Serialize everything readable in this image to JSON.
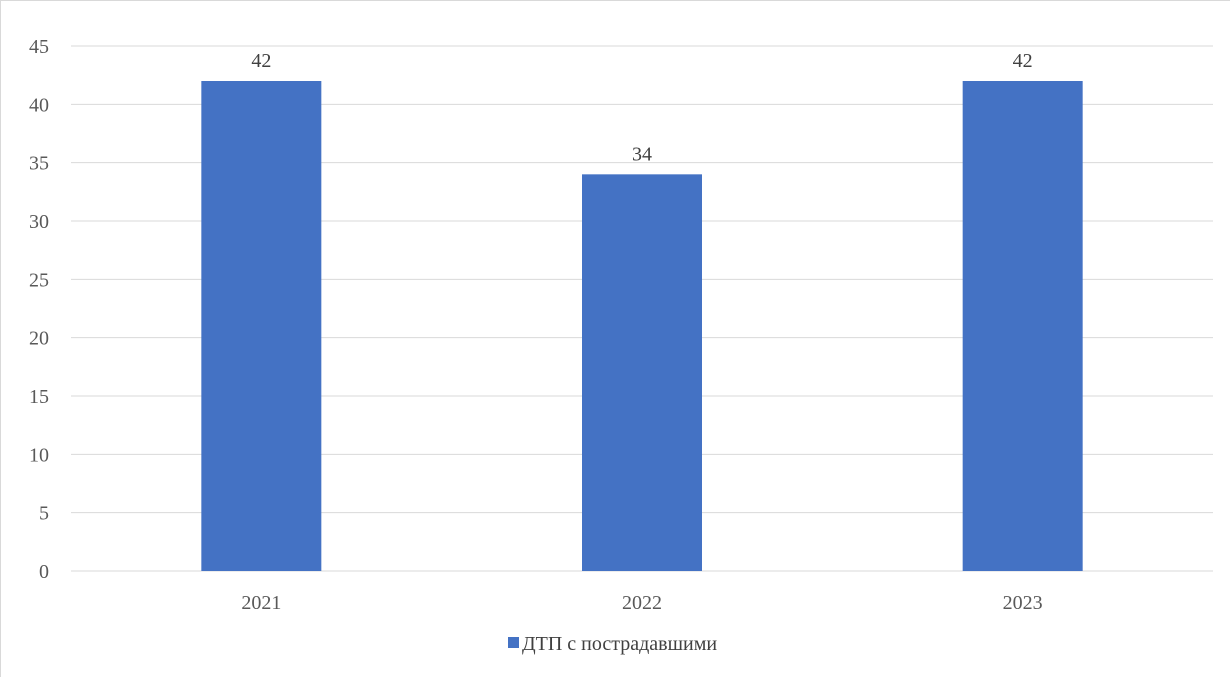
{
  "chart_data": {
    "type": "bar",
    "categories": [
      "2021",
      "2022",
      "2023"
    ],
    "series": [
      {
        "name": "ДТП с пострадавшими",
        "values": [
          42,
          34,
          42
        ],
        "color": "#4472c4"
      }
    ],
    "ylim": [
      0,
      45
    ],
    "yticks": [
      0,
      5,
      10,
      15,
      20,
      25,
      30,
      35,
      40,
      45
    ],
    "data_labels": true,
    "grid": true,
    "legend": "bottom-center",
    "gridline_color": "#d9d9d9",
    "axis_text_color": "#595959"
  }
}
